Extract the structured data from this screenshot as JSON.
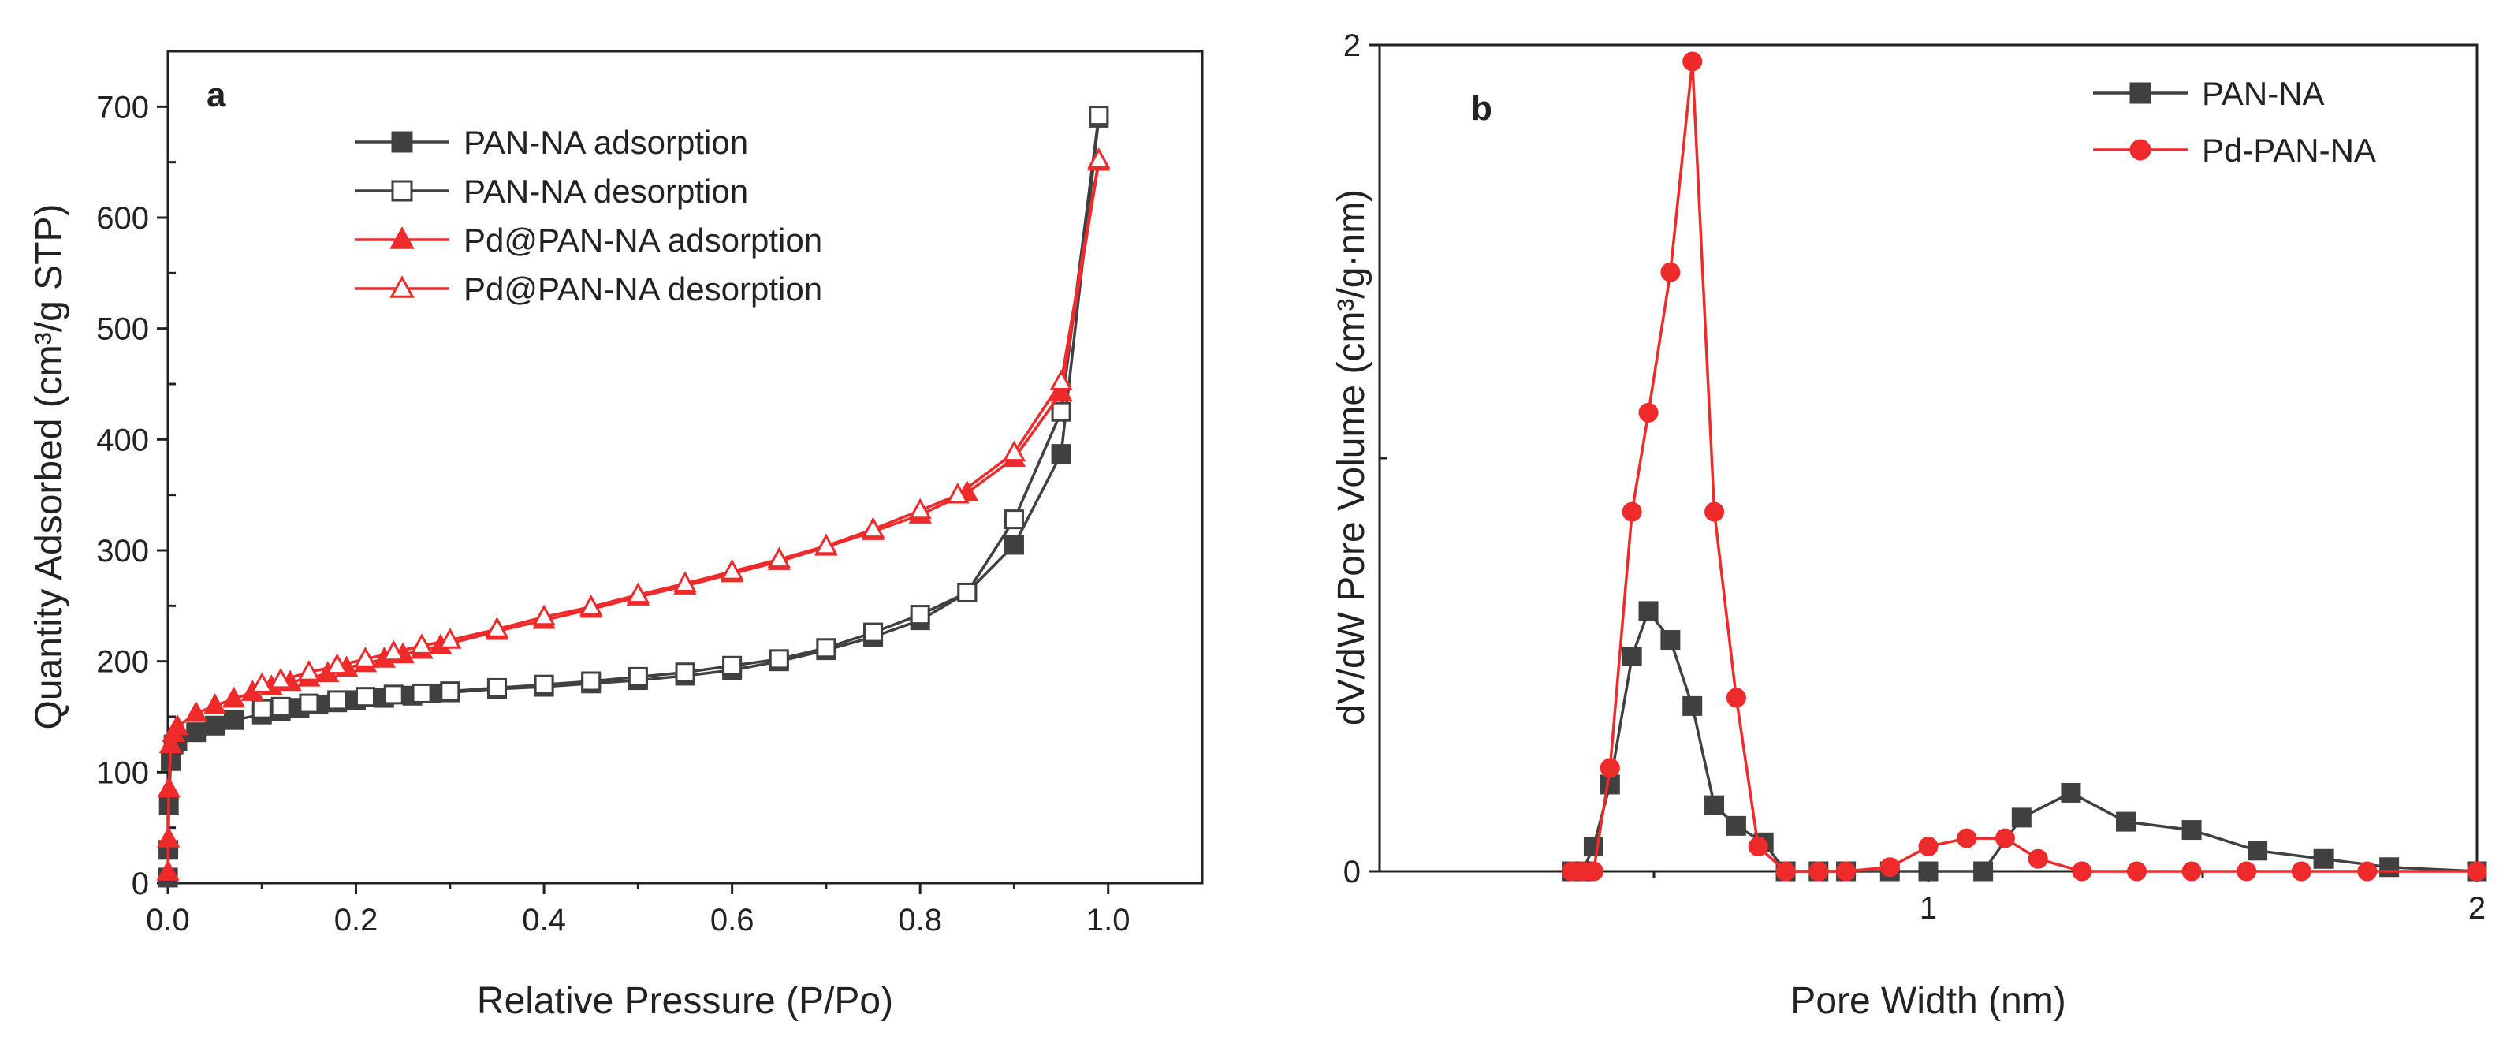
{
  "chart_data": [
    {
      "type": "line",
      "panel_label": "a",
      "xlabel": "Relative Pressure (P/Po)",
      "ylabel": "Quantity Adsorbed (cm³/g STP)",
      "xlim": [
        0,
        1.1
      ],
      "ylim": [
        0,
        750
      ],
      "xticks": [
        0,
        0.2,
        0.4,
        0.6,
        0.8,
        1.0
      ],
      "xtick_labels": [
        "0.0",
        "0.2",
        "0.4",
        "0.6",
        "0.8",
        "1.0"
      ],
      "yticks": [
        0,
        100,
        200,
        300,
        400,
        500,
        600,
        700
      ],
      "ytick_labels": [
        "0",
        "100",
        "200",
        "300",
        "400",
        "500",
        "600",
        "700"
      ],
      "grid": false,
      "legend_position": "top-center",
      "series": [
        {
          "name": "PAN-NA adsorption",
          "color": "#404040",
          "marker": "square-filled",
          "x": [
            0.0001,
            0.0005,
            0.001,
            0.003,
            0.006,
            0.01,
            0.03,
            0.05,
            0.07,
            0.1,
            0.12,
            0.14,
            0.16,
            0.18,
            0.2,
            0.23,
            0.26,
            0.28,
            0.3,
            0.35,
            0.4,
            0.45,
            0.5,
            0.55,
            0.6,
            0.65,
            0.7,
            0.75,
            0.8,
            0.85,
            0.9,
            0.95,
            0.99
          ],
          "y": [
            5,
            30,
            70,
            110,
            125,
            128,
            136,
            142,
            147,
            152,
            155,
            158,
            161,
            163,
            165,
            167,
            169,
            171,
            172,
            175,
            177,
            180,
            183,
            187,
            192,
            200,
            210,
            222,
            237,
            262,
            305,
            387,
            690
          ]
        },
        {
          "name": "PAN-NA desorption",
          "color": "#404040",
          "marker": "square-open",
          "x": [
            0.99,
            0.95,
            0.9,
            0.85,
            0.8,
            0.75,
            0.7,
            0.65,
            0.6,
            0.55,
            0.5,
            0.45,
            0.4,
            0.35,
            0.3,
            0.27,
            0.24,
            0.21,
            0.18,
            0.15,
            0.12,
            0.1
          ],
          "y": [
            692,
            425,
            328,
            262,
            242,
            226,
            212,
            202,
            196,
            190,
            186,
            182,
            179,
            176,
            173,
            171,
            170,
            168,
            165,
            162,
            159,
            157
          ]
        },
        {
          "name": "Pd@PAN-NA adsorption",
          "color": "#ee2a2a",
          "marker": "triangle-filled",
          "x": [
            0.0001,
            0.0005,
            0.001,
            0.003,
            0.006,
            0.01,
            0.03,
            0.05,
            0.07,
            0.09,
            0.11,
            0.13,
            0.15,
            0.17,
            0.19,
            0.21,
            0.23,
            0.25,
            0.27,
            0.29,
            0.35,
            0.4,
            0.45,
            0.5,
            0.55,
            0.6,
            0.65,
            0.7,
            0.75,
            0.8,
            0.85,
            0.9,
            0.95,
            0.99
          ],
          "y": [
            10,
            40,
            85,
            125,
            135,
            141,
            153,
            160,
            166,
            172,
            177,
            181,
            185,
            189,
            194,
            198,
            202,
            206,
            210,
            214,
            227,
            237,
            247,
            258,
            268,
            279,
            290,
            303,
            317,
            332,
            352,
            383,
            442,
            650
          ]
        },
        {
          "name": "Pd@PAN-NA desorption",
          "color": "#ee2a2a",
          "marker": "triangle-open",
          "x": [
            0.99,
            0.95,
            0.9,
            0.84,
            0.8,
            0.75,
            0.7,
            0.65,
            0.6,
            0.55,
            0.5,
            0.45,
            0.4,
            0.35,
            0.3,
            0.27,
            0.24,
            0.21,
            0.18,
            0.15,
            0.12,
            0.1
          ],
          "y": [
            652,
            452,
            388,
            350,
            336,
            319,
            304,
            292,
            281,
            270,
            260,
            249,
            240,
            229,
            219,
            214,
            208,
            202,
            196,
            190,
            183,
            179
          ]
        }
      ]
    },
    {
      "type": "line",
      "panel_label": "b",
      "xlabel": "Pore Width (nm)",
      "ylabel": "dV/dW Pore Volume (cm³/g·nm)",
      "xlim": [
        0,
        2
      ],
      "ylim": [
        0,
        2
      ],
      "xticks": [
        1,
        2
      ],
      "xtick_labels": [
        "1",
        "2"
      ],
      "yticks": [
        0,
        2
      ],
      "ytick_labels": [
        "0",
        "2"
      ],
      "grid": false,
      "legend_position": "top-right",
      "series": [
        {
          "name": "PAN-NA",
          "color": "#404040",
          "marker": "square-filled",
          "x": [
            0.35,
            0.37,
            0.39,
            0.42,
            0.46,
            0.49,
            0.53,
            0.57,
            0.61,
            0.65,
            0.7,
            0.74,
            0.8,
            0.85,
            0.93,
            1.0,
            1.1,
            1.17,
            1.26,
            1.36,
            1.48,
            1.6,
            1.72,
            1.84,
            2.0
          ],
          "y": [
            0.0,
            0.0,
            0.06,
            0.21,
            0.52,
            0.63,
            0.56,
            0.4,
            0.16,
            0.11,
            0.07,
            0.0,
            0.0,
            0.0,
            0.0,
            0.0,
            0.0,
            0.13,
            0.19,
            0.12,
            0.1,
            0.05,
            0.03,
            0.01,
            0.0
          ]
        },
        {
          "name": "Pd-PAN-NA",
          "color": "#ee2a2a",
          "marker": "circle-filled",
          "x": [
            0.35,
            0.37,
            0.39,
            0.42,
            0.46,
            0.49,
            0.53,
            0.57,
            0.61,
            0.65,
            0.69,
            0.74,
            0.8,
            0.85,
            0.93,
            1.0,
            1.07,
            1.14,
            1.2,
            1.28,
            1.38,
            1.48,
            1.58,
            1.68,
            1.8,
            2.0
          ],
          "y": [
            0.0,
            0.0,
            0.0,
            0.25,
            0.87,
            1.11,
            1.45,
            1.96,
            0.87,
            0.42,
            0.06,
            0.0,
            0.0,
            0.0,
            0.01,
            0.06,
            0.08,
            0.08,
            0.03,
            0.0,
            0.0,
            0.0,
            0.0,
            0.0,
            0.0,
            0.0
          ]
        }
      ]
    }
  ]
}
